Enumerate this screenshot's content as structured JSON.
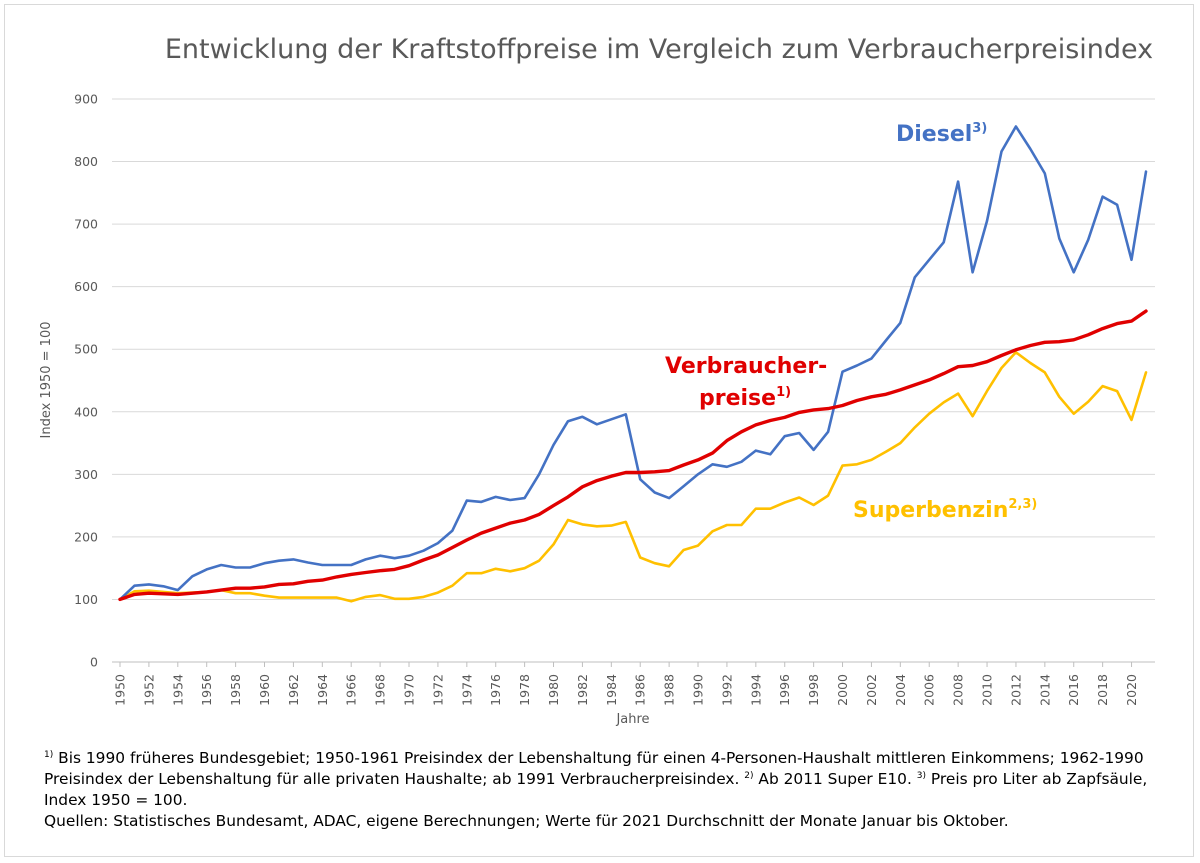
{
  "chart_data": {
    "type": "line",
    "title": "Entwicklung der Kraftstoffpreise im Vergleich zum Verbraucherpreisindex",
    "xlabel": "Jahre",
    "ylabel": "Index 1950 = 100",
    "ylim": [
      0,
      900
    ],
    "yticks": [
      "0",
      "100",
      "200",
      "300",
      "400",
      "500",
      "600",
      "700",
      "800",
      "900"
    ],
    "xticks": [
      "1950",
      "1952",
      "1954",
      "1956",
      "1958",
      "1960",
      "1962",
      "1964",
      "1966",
      "1968",
      "1970",
      "1972",
      "1974",
      "1976",
      "1978",
      "1980",
      "1982",
      "1984",
      "1986",
      "1988",
      "1990",
      "1992",
      "1994",
      "1996",
      "1998",
      "2000",
      "2002",
      "2004",
      "2006",
      "2008",
      "2010",
      "2012",
      "2014",
      "2016",
      "2018",
      "2020"
    ],
    "grid": "horizontal",
    "x": [
      1950,
      1951,
      1952,
      1953,
      1954,
      1955,
      1956,
      1957,
      1958,
      1959,
      1960,
      1961,
      1962,
      1963,
      1964,
      1965,
      1966,
      1967,
      1968,
      1969,
      1970,
      1971,
      1972,
      1973,
      1974,
      1975,
      1976,
      1977,
      1978,
      1979,
      1980,
      1981,
      1982,
      1983,
      1984,
      1985,
      1986,
      1987,
      1988,
      1989,
      1990,
      1991,
      1992,
      1993,
      1994,
      1995,
      1996,
      1997,
      1998,
      1999,
      2000,
      2001,
      2002,
      2003,
      2004,
      2005,
      2006,
      2007,
      2008,
      2009,
      2010,
      2011,
      2012,
      2013,
      2014,
      2015,
      2016,
      2017,
      2018,
      2019,
      2020,
      2021
    ],
    "series": [
      {
        "name": "Diesel",
        "label_main": "Diesel",
        "label_sup": "3)",
        "color": "#4472c4",
        "values": [
          100,
          122,
          124,
          121,
          115,
          137,
          148,
          155,
          151,
          151,
          158,
          162,
          164,
          159,
          155,
          155,
          155,
          164,
          170,
          166,
          170,
          178,
          190,
          210,
          258,
          256,
          264,
          259,
          262,
          300,
          347,
          385,
          392,
          380,
          388,
          396,
          292,
          271,
          262,
          281,
          300,
          316,
          312,
          320,
          338,
          332,
          361,
          366,
          339,
          368,
          464,
          474,
          485,
          514,
          542,
          615,
          643,
          671,
          768,
          623,
          705,
          816,
          856,
          820,
          781,
          677,
          623,
          675,
          744,
          731,
          643,
          784
        ]
      },
      {
        "name": "Verbraucherpreise",
        "label_main": "Verbraucher-",
        "label_main2": "preise",
        "label_sup": "1)",
        "color": "#e00000",
        "values": [
          100,
          108,
          110,
          109,
          108,
          110,
          112,
          115,
          118,
          118,
          120,
          124,
          125,
          129,
          131,
          136,
          140,
          143,
          146,
          148,
          154,
          163,
          171,
          183,
          195,
          206,
          214,
          222,
          227,
          236,
          250,
          264,
          280,
          290,
          297,
          303,
          303,
          304,
          306,
          315,
          323,
          334,
          354,
          368,
          379,
          386,
          391,
          399,
          403,
          405,
          410,
          418,
          424,
          428,
          435,
          443,
          451,
          461,
          472,
          474,
          480,
          490,
          499,
          506,
          511,
          512,
          515,
          523,
          533,
          541,
          545,
          561
        ]
      },
      {
        "name": "Superbenzin",
        "label_main": "Superbenzin",
        "label_sup": "2,3)",
        "color": "#ffc000",
        "values": [
          100,
          113,
          114,
          112,
          110,
          111,
          112,
          115,
          110,
          110,
          106,
          103,
          103,
          103,
          103,
          103,
          97,
          104,
          107,
          101,
          101,
          104,
          111,
          122,
          142,
          142,
          149,
          145,
          150,
          162,
          188,
          227,
          220,
          217,
          218,
          224,
          167,
          158,
          153,
          179,
          186,
          209,
          219,
          219,
          245,
          245,
          255,
          263,
          251,
          266,
          314,
          316,
          323,
          336,
          350,
          375,
          397,
          415,
          429,
          393,
          433,
          470,
          495,
          478,
          463,
          424,
          397,
          416,
          441,
          433,
          387,
          463
        ]
      }
    ]
  },
  "footnotes": {
    "line1_sup": "1)",
    "line1": " Bis 1990 früheres Bundesgebiet; 1950-1961 Preisindex der Lebenshaltung für einen 4-Personen-Haushalt mittleren Einkommens; 1962-1990 Preisindex der Lebenshaltung  für alle privaten Haushalte; ab 1991 Verbraucherpreisindex. ",
    "line1_sup2": "2)",
    "line1b": " Ab 2011 Super E10. ",
    "line1_sup3": "3)",
    "line1c": " Preis pro Liter ab Zapfsäule, Index 1950 = 100.",
    "line2": "Quellen: Statistisches Bundesamt, ADAC, eigene Berechnungen; Werte für 2021 Durchschnitt der Monate Januar bis Oktober."
  }
}
